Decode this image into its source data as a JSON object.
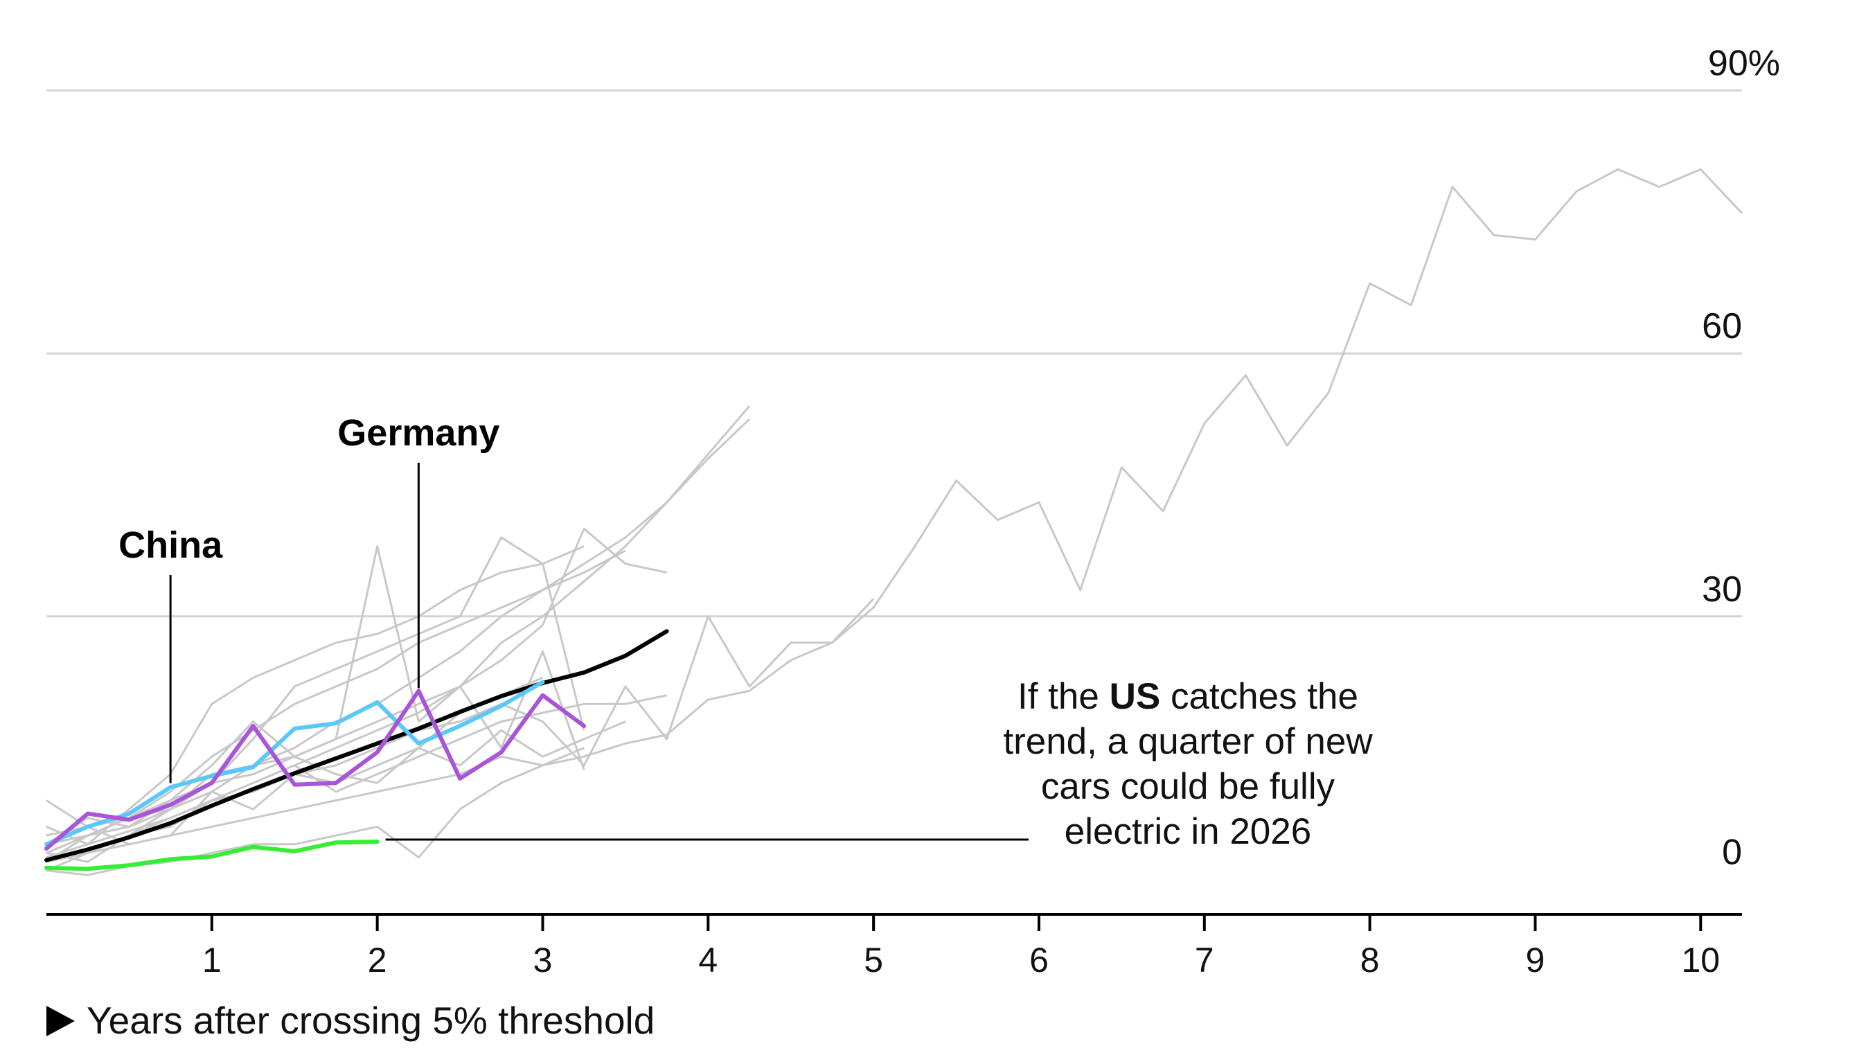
{
  "chart_data": {
    "type": "line",
    "xlabel": "Years after crossing 5% threshold",
    "xlabel_marker": "▶",
    "x_ticks": [
      1,
      2,
      3,
      4,
      5,
      6,
      7,
      8,
      9,
      10
    ],
    "xlim": [
      0,
      10.25
    ],
    "y_ticks": [
      "0",
      "30",
      "60",
      "90%"
    ],
    "y_tick_values": [
      0,
      30,
      60,
      90
    ],
    "ylim": [
      -4,
      94
    ],
    "grid": true,
    "colors": {
      "background_series": "#c8c8c8",
      "trend": "#000000",
      "china": "#5ac8fa",
      "germany": "#a855d8",
      "us": "#33ee33",
      "grid": "#d4d4d4",
      "axis": "#000000"
    },
    "labels": {
      "china": "China",
      "germany": "Germany"
    },
    "annotation": {
      "line1_pre": "If the ",
      "line1_bold": "US",
      "line1_post": " catches the",
      "line2": "trend, a quarter of new",
      "line3": "cars could be fully",
      "line4": "electric in 2026"
    },
    "series": [
      {
        "name": "China",
        "role": "china",
        "x": [
          0,
          0.25,
          0.5,
          0.75,
          1,
          1.25,
          1.5,
          1.75,
          2,
          2.25,
          2.5,
          2.75,
          3
        ],
        "y": [
          4,
          6,
          7.5,
          10.5,
          11.8,
          12.8,
          17.2,
          17.8,
          20.2,
          15.5,
          17.5,
          19.8,
          22.5
        ]
      },
      {
        "name": "Germany",
        "role": "germany",
        "x": [
          0,
          0.25,
          0.5,
          0.75,
          1,
          1.25,
          1.5,
          1.75,
          2,
          2.25,
          2.5,
          2.75,
          3,
          3.25
        ],
        "y": [
          3.5,
          7.5,
          6.8,
          8.5,
          11,
          17.5,
          10.8,
          11,
          14.5,
          21.5,
          11.5,
          14.5,
          21,
          17.5
        ]
      },
      {
        "name": "US",
        "role": "us",
        "x": [
          0,
          0.25,
          0.5,
          0.75,
          1,
          1.25,
          1.5,
          1.75,
          2
        ],
        "y": [
          1.3,
          1.2,
          1.6,
          2.3,
          2.6,
          3.7,
          3.2,
          4.2,
          4.3
        ]
      },
      {
        "role": "trend",
        "x": [
          0,
          0.25,
          0.5,
          0.75,
          1,
          1.25,
          1.5,
          1.75,
          2,
          2.25,
          2.5,
          2.75,
          3,
          3.25,
          3.5,
          3.75
        ],
        "y": [
          2.2,
          3.4,
          4.8,
          6.4,
          8.4,
          10.3,
          12.1,
          13.8,
          15.5,
          17.2,
          19.1,
          20.9,
          22.4,
          23.6,
          25.5,
          28.3
        ]
      },
      {
        "role": "background",
        "x": [
          0,
          0.25,
          0.5,
          0.75,
          1,
          1.25,
          1.5,
          1.75,
          2,
          2.25,
          2.5,
          2.75,
          3,
          3.25,
          3.5,
          3.75,
          4,
          4.25,
          4.5,
          4.75,
          5,
          5.25,
          5.5,
          5.75,
          6,
          6.25,
          6.5,
          6.75,
          7,
          7.25,
          7.5,
          7.75,
          8,
          8.25,
          8.5,
          8.75,
          9,
          9.25,
          9.5,
          9.75,
          10,
          10.25
        ],
        "y": [
          2.5,
          3,
          4,
          5,
          6,
          7,
          8,
          9,
          10,
          11,
          12,
          14,
          13,
          14,
          15.5,
          16.5,
          20.5,
          21.5,
          25,
          27,
          31,
          38,
          45.5,
          41,
          43,
          33,
          47,
          42,
          52,
          57.5,
          49.5,
          55.5,
          68,
          65.5,
          79,
          73.5,
          73,
          78.5,
          81,
          79,
          81,
          76
        ]
      },
      {
        "role": "background",
        "x": [
          0,
          0.25,
          0.5,
          0.75,
          1,
          1.25,
          1.5,
          1.75,
          2,
          2.25,
          2.5,
          2.75,
          3,
          3.25,
          3.5,
          3.75,
          4,
          4.25
        ],
        "y": [
          2.5,
          4,
          5.5,
          7,
          9,
          11,
          13,
          15,
          17,
          19,
          22,
          27,
          30,
          34,
          38,
          43,
          48.5,
          54
        ]
      },
      {
        "role": "background",
        "x": [
          0,
          0.25,
          0.5,
          0.75,
          1,
          1.25,
          1.5,
          1.75,
          2,
          2.25,
          2.5,
          2.75,
          3,
          3.25,
          3.5,
          3.75,
          4,
          4.25
        ],
        "y": [
          3,
          5,
          6,
          8,
          10,
          13,
          15,
          18,
          20,
          23,
          26,
          30,
          33,
          36,
          39,
          43,
          48,
          52.5
        ]
      },
      {
        "role": "background",
        "x": [
          0,
          0.25,
          0.5,
          0.75,
          1,
          1.25,
          1.5,
          1.75,
          2,
          2.25,
          2.5,
          2.75,
          3,
          3.25,
          3.5,
          3.75
        ],
        "y": [
          4,
          5,
          7,
          9,
          11,
          12,
          14,
          16,
          38,
          18,
          22,
          25,
          29,
          40,
          36,
          35
        ]
      },
      {
        "role": "background",
        "x": [
          0,
          0.25,
          0.5,
          0.75,
          1,
          1.25,
          1.5,
          1.75,
          2,
          2.25,
          2.5,
          2.75,
          3,
          3.25,
          3.5
        ],
        "y": [
          5,
          6,
          7,
          10,
          14,
          17,
          20,
          22,
          24,
          27,
          29,
          31,
          33,
          35,
          37.5
        ]
      },
      {
        "role": "background",
        "x": [
          0,
          0.25,
          0.5,
          0.75,
          1,
          1.25,
          1.5,
          1.75,
          2,
          2.25,
          2.5,
          2.75,
          3,
          3.25
        ],
        "y": [
          6,
          4,
          8,
          12,
          20,
          23,
          25,
          27,
          28,
          30,
          33,
          35,
          36,
          38
        ]
      },
      {
        "role": "background",
        "x": [
          0,
          0.25,
          0.5,
          0.75,
          1,
          1.25,
          1.5,
          1.75,
          2,
          2.25,
          2.5,
          2.75,
          3,
          3.25
        ],
        "y": [
          2,
          5,
          7,
          8,
          11,
          16,
          22,
          24,
          26,
          28,
          30,
          39,
          36,
          17
        ]
      },
      {
        "role": "background",
        "x": [
          0,
          0.25,
          0.5,
          0.75,
          1,
          1.25,
          1.5,
          1.75,
          2,
          2.25,
          2.5,
          2.75,
          3,
          3.25,
          3.5,
          3.75,
          4,
          4.25,
          4.5,
          4.75,
          5
        ],
        "y": [
          1,
          3,
          5,
          7,
          9,
          10,
          12,
          13,
          15,
          17,
          18,
          20,
          18,
          13,
          22,
          16,
          30,
          22,
          27,
          27,
          32
        ]
      },
      {
        "role": "background",
        "x": [
          0,
          0.25,
          0.5,
          0.75,
          1,
          1.25,
          1.5,
          1.75,
          2,
          2.25,
          2.5,
          2.75,
          3,
          3.25,
          3.5
        ],
        "y": [
          9,
          6,
          4,
          5,
          10,
          8,
          12,
          11,
          13,
          15,
          13,
          17,
          14,
          16,
          18
        ]
      },
      {
        "role": "background",
        "x": [
          0,
          0.25,
          0.5,
          0.75,
          1,
          1.25,
          1.5,
          1.75,
          2,
          2.25,
          2.5,
          2.75,
          3,
          3.25,
          3.5,
          3.75
        ],
        "y": [
          3,
          2,
          5,
          6,
          9,
          11,
          13,
          10,
          12,
          14,
          16,
          18,
          19,
          20,
          20,
          21
        ]
      },
      {
        "role": "background",
        "x": [
          0,
          0.25,
          0.5,
          0.75,
          1,
          1.25,
          1.5,
          1.75,
          2,
          2.25,
          2.5,
          2.75,
          3,
          3.25
        ],
        "y": [
          1,
          0.5,
          1.5,
          2,
          3,
          4,
          4,
          5,
          6,
          2.5,
          8,
          11,
          13,
          15
        ]
      },
      {
        "role": "background",
        "x": [
          0,
          0.25,
          0.5,
          0.75,
          1,
          1.25,
          1.5,
          1.75,
          2,
          2.25,
          2.5,
          2.75,
          3
        ],
        "y": [
          4,
          7,
          6,
          9,
          13,
          18,
          14,
          12,
          11,
          15,
          19,
          21,
          23
        ]
      },
      {
        "role": "background",
        "x": [
          0,
          0.25,
          0.5,
          0.75,
          1,
          1.25,
          1.5,
          1.75,
          2,
          2.25,
          2.5,
          2.75,
          3,
          3.25
        ],
        "y": [
          2,
          3,
          5,
          8,
          12,
          13,
          14,
          16,
          18,
          20,
          22,
          15,
          26,
          12.5
        ]
      }
    ]
  }
}
